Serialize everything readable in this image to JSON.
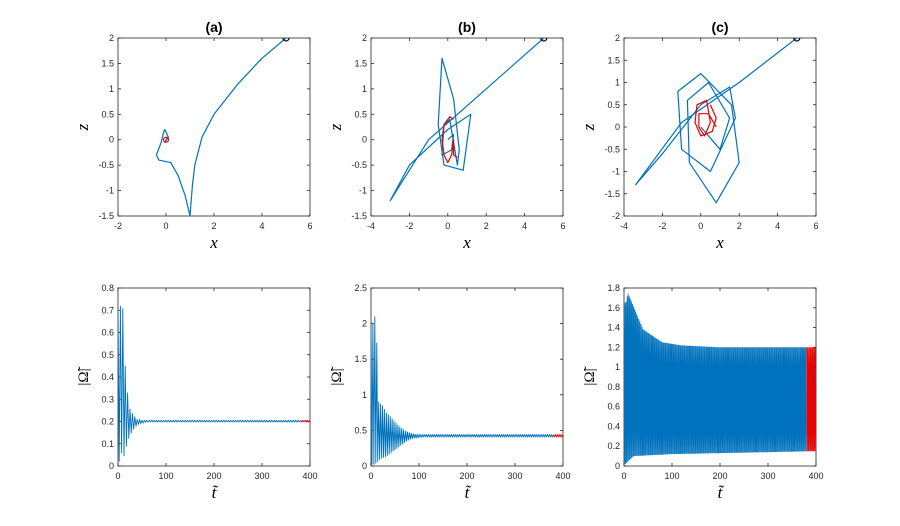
{
  "colors": {
    "trajectory": "#0072BD",
    "attractor": "#E60000",
    "initial": "#000000",
    "axes": "#262626"
  },
  "chart_data": [
    {
      "id": "a-phase",
      "type": "line",
      "title": "(a)",
      "xlabel": "x",
      "ylabel": "z",
      "xlim": [
        -2,
        6
      ],
      "ylim": [
        -1.5,
        2
      ],
      "xticks": [
        "-2",
        "0",
        "2",
        "4",
        "6"
      ],
      "yticks": [
        "-1.5",
        "-1",
        "-0.5",
        "0",
        "0.5",
        "1",
        "1.5",
        "2"
      ],
      "initial_point": [
        5,
        2
      ],
      "series": [
        {
          "role": "transient",
          "x": [
            5,
            4,
            3,
            2,
            1.5,
            1.2,
            1.1,
            1.05,
            1.0,
            0.8,
            0.5,
            0.2,
            -0.3,
            -0.4,
            -0.2,
            -0.1,
            -0.05,
            0.0,
            0.1,
            -0.05,
            0.05,
            0.0
          ],
          "z": [
            2,
            1.6,
            1.1,
            0.5,
            0.05,
            -0.5,
            -0.9,
            -1.2,
            -1.5,
            -1.1,
            -0.7,
            -0.45,
            -0.4,
            -0.3,
            -0.05,
            0.15,
            0.2,
            0.15,
            0.05,
            -0.05,
            0.03,
            0.0
          ]
        },
        {
          "role": "attractor",
          "x": [
            0.0
          ],
          "z": [
            0.0
          ]
        }
      ]
    },
    {
      "id": "b-phase",
      "type": "line",
      "title": "(b)",
      "xlabel": "x",
      "ylabel": "z",
      "xlim": [
        -4,
        6
      ],
      "ylim": [
        -1.5,
        2
      ],
      "xticks": [
        "-4",
        "-2",
        "0",
        "2",
        "4",
        "6"
      ],
      "yticks": [
        "-1.5",
        "-1",
        "-0.5",
        "0",
        "0.5",
        "1",
        "1.5",
        "2"
      ],
      "initial_point": [
        5,
        2
      ],
      "series": [
        {
          "role": "transient",
          "x": [
            5,
            2,
            -1,
            -3,
            -2,
            0,
            1.2,
            0.8,
            -0.2,
            -0.5,
            -0.3,
            0.3,
            0.6,
            0.5,
            0.1,
            -0.2,
            -0.3,
            0.2,
            0.3,
            0.0
          ],
          "z": [
            2,
            1.0,
            0.0,
            -1.2,
            -0.5,
            0.2,
            0.5,
            -0.6,
            -0.5,
            0.3,
            1.6,
            0.8,
            -0.2,
            -0.5,
            0.4,
            0.3,
            -0.3,
            -0.2,
            0.1,
            0.0
          ]
        },
        {
          "role": "attractor",
          "x": [
            0.3,
            0.1,
            -0.2,
            -0.3,
            -0.2,
            0.0,
            0.2,
            0.3,
            0.3,
            0.5
          ],
          "z": [
            0.4,
            0.45,
            0.3,
            0.0,
            -0.3,
            -0.45,
            -0.3,
            0.0,
            -0.3,
            -0.35
          ]
        }
      ]
    },
    {
      "id": "c-phase",
      "type": "line",
      "title": "(c)",
      "xlabel": "x",
      "ylabel": "z",
      "xlim": [
        -4,
        6
      ],
      "ylim": [
        -2,
        2
      ],
      "xticks": [
        "-4",
        "-2",
        "0",
        "2",
        "4",
        "6"
      ],
      "yticks": [
        "-2",
        "-1.5",
        "-1",
        "-0.5",
        "0",
        "0.5",
        "1",
        "1.5",
        "2"
      ],
      "initial_point": [
        5,
        2
      ],
      "series": [
        {
          "role": "transient",
          "x": [
            5,
            2,
            -1,
            -3.4,
            -2,
            0,
            1.5,
            1.8,
            0.5,
            -1.0,
            -1.2,
            0.0,
            1.6,
            2.0,
            0.8,
            -0.6,
            -0.7,
            0.4,
            1.5,
            1.0,
            0.0
          ],
          "z": [
            2,
            1.0,
            0.1,
            -1.3,
            -0.6,
            0.5,
            0.9,
            0.2,
            -1.0,
            -0.5,
            0.8,
            1.2,
            0.5,
            -0.8,
            -1.7,
            -0.8,
            0.6,
            1.0,
            0.2,
            -0.5,
            0.0
          ]
        },
        {
          "role": "attractor",
          "x": [
            0.5,
            0.8,
            0.6,
            0.0,
            -0.3,
            -0.2,
            0.3,
            0.5,
            0.2,
            -0.1,
            -0.1,
            0.4,
            0.8
          ],
          "z": [
            0.5,
            0.2,
            -0.1,
            -0.2,
            0.1,
            0.5,
            0.6,
            0.1,
            -0.2,
            0.0,
            0.3,
            0.3,
            0.0
          ]
        }
      ]
    },
    {
      "id": "a-time",
      "type": "line",
      "xlabel": "t̃",
      "ylabel": "|Ω̃|",
      "xlim": [
        0,
        400
      ],
      "ylim": [
        0,
        0.8
      ],
      "xticks": [
        "0",
        "100",
        "200",
        "300",
        "400"
      ],
      "yticks": [
        "0",
        "0.1",
        "0.2",
        "0.3",
        "0.4",
        "0.5",
        "0.6",
        "0.7",
        "0.8"
      ],
      "equilibrium": 0.2,
      "attractor_from_t": 380,
      "peaks": [
        [
          5,
          0.72
        ],
        [
          9,
          0.76
        ],
        [
          16,
          0.4
        ],
        [
          24,
          0.26
        ],
        [
          32,
          0.23
        ],
        [
          40,
          0.21
        ],
        [
          50,
          0.205
        ]
      ],
      "troughs": [
        [
          3,
          0.02
        ],
        [
          7,
          0.06
        ],
        [
          12,
          0.04
        ],
        [
          20,
          0.11
        ],
        [
          28,
          0.15
        ],
        [
          36,
          0.175
        ],
        [
          45,
          0.19
        ],
        [
          60,
          0.198
        ]
      ]
    },
    {
      "id": "b-time",
      "type": "line",
      "xlabel": "t̃",
      "ylabel": "|Ω̃|",
      "xlim": [
        0,
        400
      ],
      "ylim": [
        0,
        2.5
      ],
      "xticks": [
        "0",
        "100",
        "200",
        "300",
        "400"
      ],
      "yticks": [
        "0",
        "0.5",
        "1",
        "1.5",
        "2",
        "2.5"
      ],
      "baseline": 0.42,
      "attractor_from_t": 380,
      "peaks": [
        [
          4,
          2.0
        ],
        [
          10,
          2.15
        ],
        [
          16,
          0.9
        ],
        [
          24,
          0.85
        ],
        [
          32,
          0.75
        ],
        [
          40,
          0.7
        ],
        [
          50,
          0.62
        ],
        [
          60,
          0.55
        ],
        [
          70,
          0.5
        ],
        [
          80,
          0.47
        ],
        [
          90,
          0.45
        ],
        [
          100,
          0.44
        ]
      ],
      "troughs": [
        [
          7,
          0.02
        ],
        [
          13,
          0.05
        ],
        [
          20,
          0.1
        ],
        [
          28,
          0.12
        ],
        [
          36,
          0.15
        ],
        [
          45,
          0.2
        ],
        [
          55,
          0.25
        ],
        [
          65,
          0.3
        ],
        [
          75,
          0.35
        ],
        [
          85,
          0.38
        ],
        [
          95,
          0.4
        ],
        [
          110,
          0.41
        ]
      ]
    },
    {
      "id": "c-time",
      "type": "line",
      "xlabel": "t̃",
      "ylabel": "|Ω̃|",
      "xlim": [
        0,
        400
      ],
      "ylim": [
        0,
        1.8
      ],
      "xticks": [
        "0",
        "100",
        "200",
        "300",
        "400"
      ],
      "yticks": [
        "0",
        "0.2",
        "0.4",
        "0.6",
        "0.8",
        "1",
        "1.2",
        "1.4",
        "1.6",
        "1.8"
      ],
      "band_upper": 1.2,
      "band_lower": 0.15,
      "attractor_from_t": 380,
      "peaks": [
        [
          4,
          1.65
        ],
        [
          8,
          1.75
        ],
        [
          40,
          1.38
        ],
        [
          80,
          1.25
        ],
        [
          120,
          1.22
        ],
        [
          200,
          1.2
        ],
        [
          400,
          1.2
        ]
      ],
      "troughs": [
        [
          3,
          0.02
        ],
        [
          20,
          0.1
        ],
        [
          100,
          0.12
        ],
        [
          400,
          0.15
        ]
      ]
    }
  ]
}
